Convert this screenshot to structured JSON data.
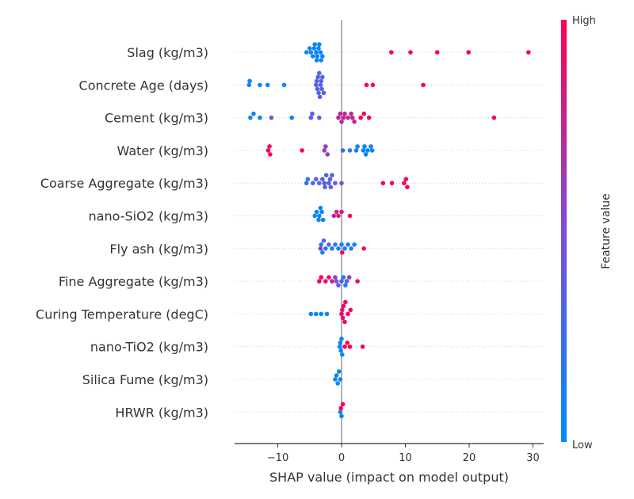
{
  "chart_data": {
    "type": "scatter",
    "subtype": "shap-beeswarm",
    "xlabel": "SHAP value (impact on model output)",
    "xlim": [
      -16.5,
      31.5
    ],
    "xticks": [
      -10,
      0,
      10,
      20,
      30
    ],
    "xtick_labels": [
      "−10",
      "0",
      "10",
      "20",
      "30"
    ],
    "grid": false,
    "colorbar": {
      "title": "Feature value",
      "high_label": "High",
      "low_label": "Low",
      "low_color": "#008bfb",
      "mid_color": "#7c4fd6",
      "high_color": "#ff0051"
    },
    "features": [
      {
        "name": "Slag (kg/m3)",
        "points": [
          {
            "x": -5.5,
            "v": 0.05
          },
          {
            "x": -5.0,
            "v": 0.05
          },
          {
            "x": -4.5,
            "v": 0.05
          },
          {
            "x": -4.2,
            "v": 0.05
          },
          {
            "x": -3.8,
            "v": 0.05
          },
          {
            "x": -3.5,
            "v": 0.05
          },
          {
            "x": -3.2,
            "v": 0.05
          },
          {
            "x": -3.0,
            "v": 0.05
          },
          {
            "x": -4.8,
            "v": 0.05
          },
          {
            "x": -4.0,
            "v": 0.05
          },
          {
            "x": -3.6,
            "v": 0.05
          },
          {
            "x": -3.3,
            "v": 0.05
          },
          {
            "x": -4.3,
            "v": 0.05
          },
          {
            "x": -3.9,
            "v": 0.05
          },
          {
            "x": 7.8,
            "v": 0.98
          },
          {
            "x": 10.8,
            "v": 0.98
          },
          {
            "x": 15.0,
            "v": 0.98
          },
          {
            "x": 19.9,
            "v": 0.98
          },
          {
            "x": 29.3,
            "v": 0.98
          }
        ]
      },
      {
        "name": "Concrete Age (days)",
        "points": [
          {
            "x": -14.5,
            "v": 0.05
          },
          {
            "x": -14.4,
            "v": 0.05
          },
          {
            "x": -12.8,
            "v": 0.05
          },
          {
            "x": -11.6,
            "v": 0.05
          },
          {
            "x": -9.0,
            "v": 0.05
          },
          {
            "x": -4.0,
            "v": 0.35
          },
          {
            "x": -3.8,
            "v": 0.35
          },
          {
            "x": -3.6,
            "v": 0.35
          },
          {
            "x": -3.4,
            "v": 0.35
          },
          {
            "x": -3.2,
            "v": 0.35
          },
          {
            "x": -3.0,
            "v": 0.35
          },
          {
            "x": -2.8,
            "v": 0.35
          },
          {
            "x": -3.5,
            "v": 0.35
          },
          {
            "x": -3.9,
            "v": 0.35
          },
          {
            "x": -3.1,
            "v": 0.35
          },
          {
            "x": -3.7,
            "v": 0.35
          },
          {
            "x": -3.3,
            "v": 0.35
          },
          {
            "x": 3.9,
            "v": 0.98
          },
          {
            "x": 4.9,
            "v": 0.98
          },
          {
            "x": 12.8,
            "v": 0.98
          }
        ]
      },
      {
        "name": "Cement (kg/m3)",
        "points": [
          {
            "x": -14.3,
            "v": 0.05
          },
          {
            "x": -13.8,
            "v": 0.05
          },
          {
            "x": -12.8,
            "v": 0.05
          },
          {
            "x": -7.8,
            "v": 0.05
          },
          {
            "x": -11.0,
            "v": 0.35
          },
          {
            "x": -4.8,
            "v": 0.35
          },
          {
            "x": -4.6,
            "v": 0.35
          },
          {
            "x": -3.5,
            "v": 0.35
          },
          {
            "x": -0.5,
            "v": 0.75
          },
          {
            "x": 0.0,
            "v": 0.75
          },
          {
            "x": 0.5,
            "v": 0.75
          },
          {
            "x": 1.0,
            "v": 0.75
          },
          {
            "x": 1.5,
            "v": 0.75
          },
          {
            "x": 2.0,
            "v": 0.75
          },
          {
            "x": 1.7,
            "v": 0.75
          },
          {
            "x": -0.2,
            "v": 0.75
          },
          {
            "x": 0.3,
            "v": 0.75
          },
          {
            "x": 3.0,
            "v": 0.98
          },
          {
            "x": 3.5,
            "v": 0.98
          },
          {
            "x": 4.3,
            "v": 0.98
          },
          {
            "x": 23.9,
            "v": 0.98
          }
        ]
      },
      {
        "name": "Water (kg/m3)",
        "points": [
          {
            "x": -11.5,
            "v": 0.98
          },
          {
            "x": -11.3,
            "v": 0.98
          },
          {
            "x": -11.2,
            "v": 0.98
          },
          {
            "x": -6.2,
            "v": 0.98
          },
          {
            "x": -2.5,
            "v": 0.6
          },
          {
            "x": -2.7,
            "v": 0.6
          },
          {
            "x": -2.2,
            "v": 0.6
          },
          {
            "x": 0.2,
            "v": 0.2
          },
          {
            "x": 1.3,
            "v": 0.2
          },
          {
            "x": 2.3,
            "v": 0.1
          },
          {
            "x": 2.5,
            "v": 0.05
          },
          {
            "x": 3.4,
            "v": 0.05
          },
          {
            "x": 3.6,
            "v": 0.05
          },
          {
            "x": 4.1,
            "v": 0.05
          },
          {
            "x": 4.8,
            "v": 0.05
          },
          {
            "x": 3.8,
            "v": 0.05
          },
          {
            "x": 4.6,
            "v": 0.05
          }
        ]
      },
      {
        "name": "Coarse Aggregate (kg/m3)",
        "points": [
          {
            "x": -5.5,
            "v": 0.2
          },
          {
            "x": -5.3,
            "v": 0.2
          },
          {
            "x": -4.5,
            "v": 0.35
          },
          {
            "x": -4.0,
            "v": 0.35
          },
          {
            "x": -3.5,
            "v": 0.35
          },
          {
            "x": -3.0,
            "v": 0.35
          },
          {
            "x": -2.7,
            "v": 0.35
          },
          {
            "x": -2.4,
            "v": 0.35
          },
          {
            "x": -2.0,
            "v": 0.35
          },
          {
            "x": -1.7,
            "v": 0.35
          },
          {
            "x": -1.5,
            "v": 0.35
          },
          {
            "x": -2.6,
            "v": 0.35
          },
          {
            "x": -1.8,
            "v": 0.35
          },
          {
            "x": -1.0,
            "v": 0.4
          },
          {
            "x": 0.0,
            "v": 0.4
          },
          {
            "x": 6.5,
            "v": 0.98
          },
          {
            "x": 7.9,
            "v": 0.98
          },
          {
            "x": 9.8,
            "v": 0.98
          },
          {
            "x": 10.1,
            "v": 0.98
          },
          {
            "x": 10.3,
            "v": 0.98
          }
        ]
      },
      {
        "name": "nano-SiO2 (kg/m3)",
        "points": [
          {
            "x": -4.2,
            "v": 0.05
          },
          {
            "x": -3.9,
            "v": 0.05
          },
          {
            "x": -3.6,
            "v": 0.05
          },
          {
            "x": -3.3,
            "v": 0.05
          },
          {
            "x": -3.1,
            "v": 0.05
          },
          {
            "x": -3.5,
            "v": 0.05
          },
          {
            "x": -2.9,
            "v": 0.05
          },
          {
            "x": -1.2,
            "v": 0.75
          },
          {
            "x": -0.8,
            "v": 0.75
          },
          {
            "x": -0.5,
            "v": 0.85
          },
          {
            "x": 0.0,
            "v": 0.9
          },
          {
            "x": 1.3,
            "v": 0.98
          }
        ]
      },
      {
        "name": "Fly ash (kg/m3)",
        "points": [
          {
            "x": -3.2,
            "v": 0.05
          },
          {
            "x": -3.0,
            "v": 0.05
          },
          {
            "x": -2.5,
            "v": 0.2
          },
          {
            "x": -2.0,
            "v": 0.3
          },
          {
            "x": -1.5,
            "v": 0.15
          },
          {
            "x": -1.0,
            "v": 0.2
          },
          {
            "x": -0.5,
            "v": 0.1
          },
          {
            "x": 0.0,
            "v": 0.1
          },
          {
            "x": 0.5,
            "v": 0.05
          },
          {
            "x": 1.0,
            "v": 0.05
          },
          {
            "x": 1.5,
            "v": 0.2
          },
          {
            "x": 2.0,
            "v": 0.05
          },
          {
            "x": -3.3,
            "v": 0.7
          },
          {
            "x": -2.8,
            "v": 0.4
          },
          {
            "x": 0.1,
            "v": 0.98
          },
          {
            "x": 3.5,
            "v": 0.9
          }
        ]
      },
      {
        "name": "Fine Aggregate (kg/m3)",
        "points": [
          {
            "x": -3.5,
            "v": 0.98
          },
          {
            "x": -3.2,
            "v": 0.98
          },
          {
            "x": -2.5,
            "v": 0.95
          },
          {
            "x": -2.0,
            "v": 0.9
          },
          {
            "x": -1.5,
            "v": 0.8
          },
          {
            "x": -1.0,
            "v": 0.6
          },
          {
            "x": -0.5,
            "v": 0.4
          },
          {
            "x": 0.0,
            "v": 0.3
          },
          {
            "x": 0.3,
            "v": 0.1
          },
          {
            "x": 0.6,
            "v": 0.05
          },
          {
            "x": 1.2,
            "v": 0.6
          },
          {
            "x": 2.5,
            "v": 0.9
          },
          {
            "x": -0.8,
            "v": 0.5
          },
          {
            "x": 0.8,
            "v": 0.45
          }
        ]
      },
      {
        "name": "Curing Temperature (degC)",
        "points": [
          {
            "x": -4.8,
            "v": 0.05
          },
          {
            "x": -4.0,
            "v": 0.05
          },
          {
            "x": -3.2,
            "v": 0.05
          },
          {
            "x": -2.3,
            "v": 0.05
          },
          {
            "x": 0.0,
            "v": 0.98
          },
          {
            "x": 0.3,
            "v": 0.98
          },
          {
            "x": 0.6,
            "v": 0.98
          },
          {
            "x": 1.0,
            "v": 0.98
          },
          {
            "x": 1.4,
            "v": 0.98
          },
          {
            "x": 0.2,
            "v": 0.9
          },
          {
            "x": 0.5,
            "v": 0.95
          },
          {
            "x": 0.1,
            "v": 0.85
          }
        ]
      },
      {
        "name": "nano-TiO2 (kg/m3)",
        "points": [
          {
            "x": -0.3,
            "v": 0.05
          },
          {
            "x": -0.2,
            "v": 0.05
          },
          {
            "x": -0.1,
            "v": 0.05
          },
          {
            "x": 0.0,
            "v": 0.05
          },
          {
            "x": 0.1,
            "v": 0.05
          },
          {
            "x": 0.5,
            "v": 0.98
          },
          {
            "x": 0.9,
            "v": 0.98
          },
          {
            "x": 1.3,
            "v": 0.98
          },
          {
            "x": 3.3,
            "v": 0.98
          }
        ]
      },
      {
        "name": "Silica Fume (kg/m3)",
        "points": [
          {
            "x": -1.0,
            "v": 0.05
          },
          {
            "x": -0.8,
            "v": 0.05
          },
          {
            "x": -0.6,
            "v": 0.05
          },
          {
            "x": -0.4,
            "v": 0.05
          },
          {
            "x": -0.2,
            "v": 0.05
          }
        ]
      },
      {
        "name": "HRWR (kg/m3)",
        "points": [
          {
            "x": -0.2,
            "v": 0.05
          },
          {
            "x": 0.0,
            "v": 0.05
          },
          {
            "x": 0.2,
            "v": 0.98
          },
          {
            "x": -0.1,
            "v": 0.98
          }
        ]
      }
    ]
  }
}
